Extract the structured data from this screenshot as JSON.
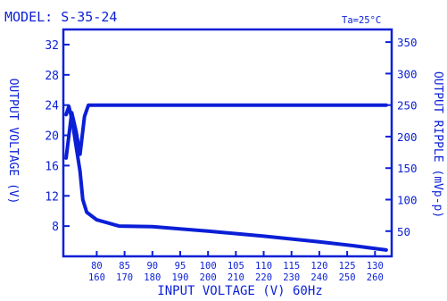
{
  "chart_data": {
    "type": "line",
    "title": "MODEL: S-35-24",
    "condition": "Ta=25°C",
    "xlabel": "INPUT VOLTAGE (V) 60Hz",
    "ylabel_left": "OUTPUT VOLTAGE (V)",
    "ylabel_right": "OUTPUT RIPPLE (mVp-p)",
    "x_ticks": [
      "80",
      "85",
      "90",
      "95",
      "100",
      "105",
      "110",
      "115",
      "120",
      "125",
      "130"
    ],
    "x_ticks_secondary": [
      "160",
      "170",
      "180",
      "190",
      "200",
      "210",
      "220",
      "230",
      "240",
      "250",
      "260"
    ],
    "xlim": [
      74,
      133
    ],
    "y_left_ticks": [
      "8",
      "12",
      "16",
      "20",
      "24",
      "28",
      "32"
    ],
    "y_left_lim": [
      4,
      34
    ],
    "y_right_ticks": [
      "50",
      "100",
      "150",
      "200",
      "250",
      "300",
      "350"
    ],
    "y_right_lim": [
      10,
      370
    ],
    "grid": false,
    "legend": "none",
    "color": "#0a1fd6",
    "series": [
      {
        "axis": "left",
        "x": [
          74.5,
          75.5,
          76.3,
          77.0,
          77.8,
          78.5,
          132
        ],
        "y": [
          17,
          23,
          20.5,
          17.5,
          22.5,
          24,
          24
        ]
      },
      {
        "axis": "right",
        "x": [
          74.5,
          75.0,
          75.6,
          76.2,
          77.0,
          77.5,
          78.2,
          80,
          84,
          90,
          100,
          110,
          120,
          126,
          132
        ],
        "y": [
          235,
          248,
          225,
          190,
          145,
          100,
          80,
          68,
          58,
          57,
          50,
          42,
          33,
          27,
          20
        ]
      }
    ]
  }
}
